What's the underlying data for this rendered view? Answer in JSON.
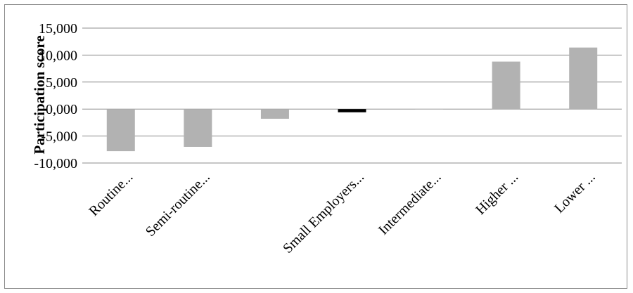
{
  "chart_data": {
    "type": "bar",
    "title": "",
    "xlabel": "",
    "ylabel": "Participation score",
    "categories": [
      "Routine...",
      "Semi-routine...",
      "",
      "Small Employers...",
      "Intermediate...",
      "Higher ...",
      "Lower ..."
    ],
    "values": [
      -7.8,
      -7.0,
      -1.8,
      -0.6,
      0.0,
      8.8,
      11.4
    ],
    "ylim": [
      -10,
      15
    ],
    "yticks": [
      15,
      10,
      5,
      0,
      -5,
      -10
    ],
    "ytick_labels": [
      "15,000",
      "10,000",
      "5,000",
      "0,000",
      "-5,000",
      "-10,000"
    ],
    "grid": true,
    "legend": "none",
    "colors": {
      "bar": "#b2b2b2",
      "highlight_bar": "#000000",
      "grid": "#8c8c8c",
      "frame": "#8c8c8c"
    },
    "highlight_index": 3
  }
}
